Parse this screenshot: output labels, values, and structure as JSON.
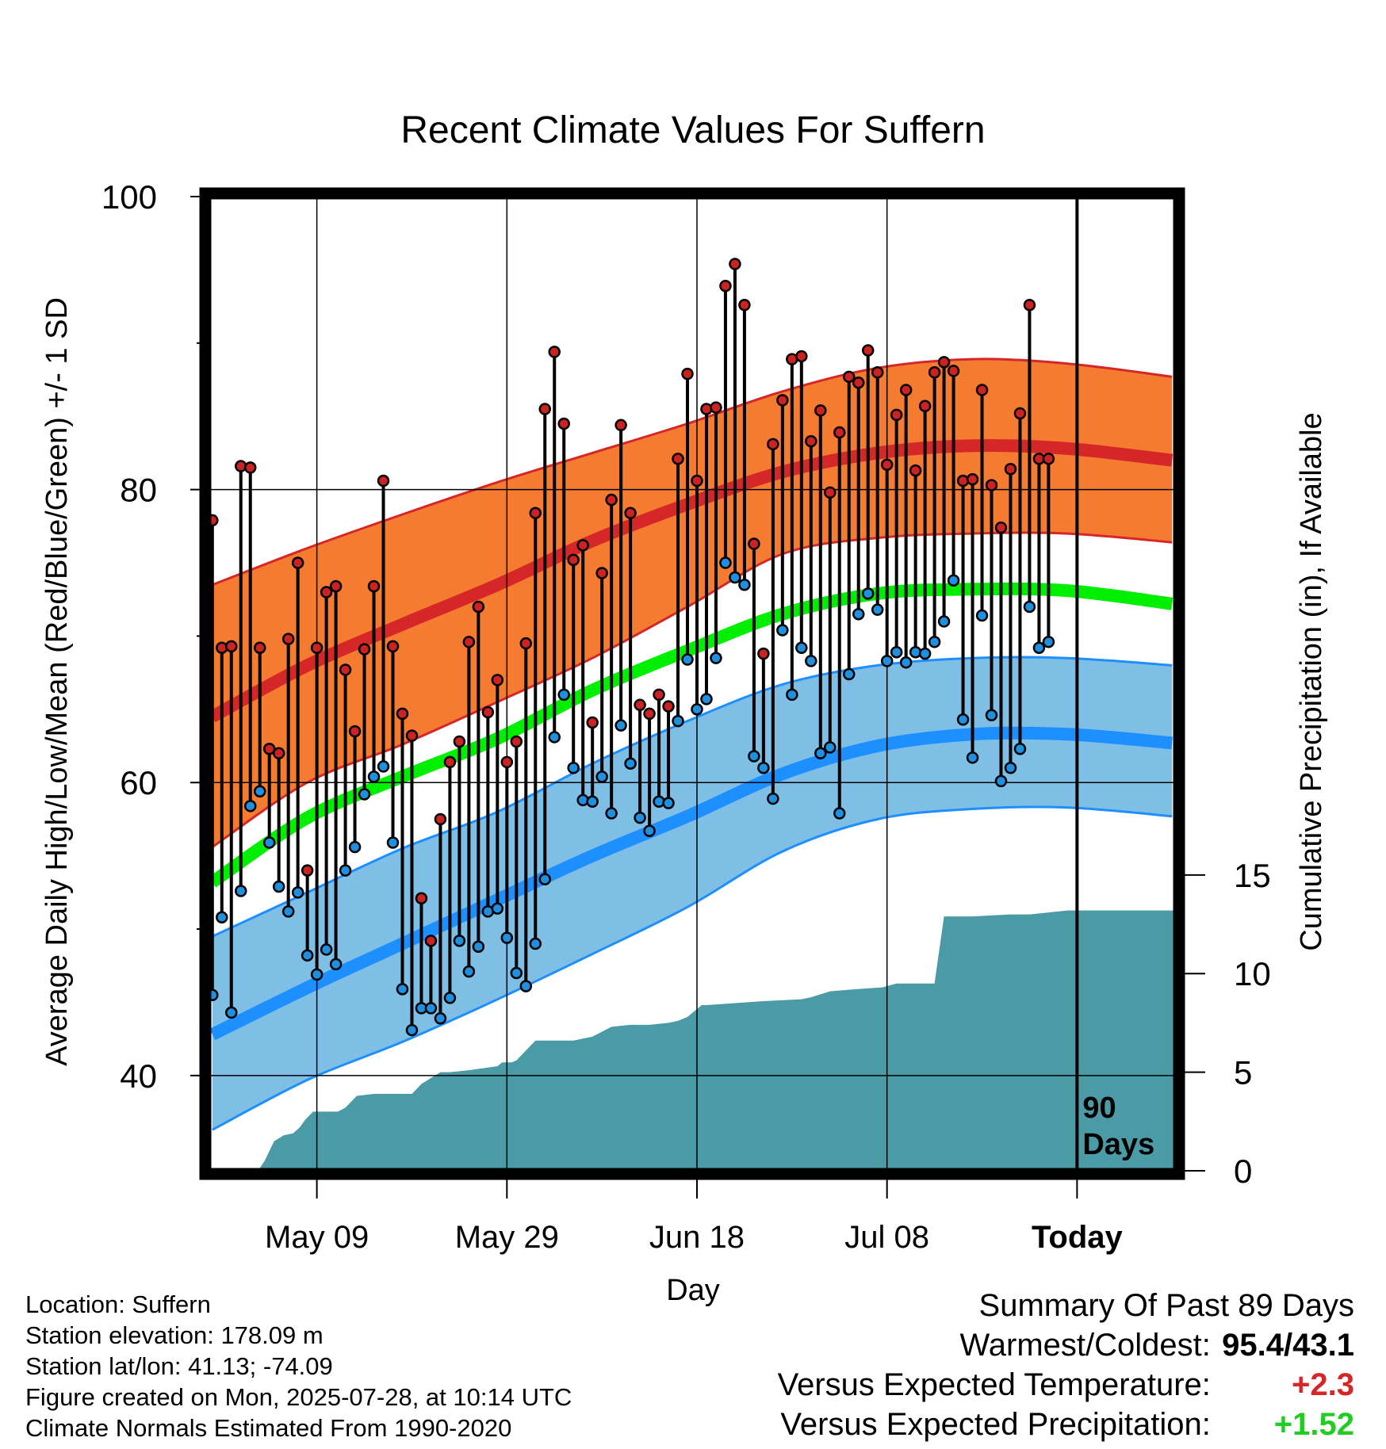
{
  "chart_data": {
    "type": "line",
    "title": "Recent Climate Values For Suffern",
    "xlabel": "Day",
    "ylabel": "Average Daily High/Low/Mean (Red/Blue/Green) +/- 1 SD",
    "y2label": "Cumulative Precipitation (in), If Available",
    "ylim": [
      33.5,
      100
    ],
    "y_ticks": [
      "100",
      "80",
      "60",
      "40"
    ],
    "y2lim": [
      0,
      49.4
    ],
    "y2_ticks": [
      "15",
      "10",
      "5",
      "0"
    ],
    "xlim": [
      -0.4,
      101.4
    ],
    "x_ticks": [
      {
        "day": 11,
        "label": "May 09"
      },
      {
        "day": 31,
        "label": "May 29"
      },
      {
        "day": 51,
        "label": "Jun 18"
      },
      {
        "day": 71,
        "label": "Jul 08"
      },
      {
        "day": 91,
        "label": "Today"
      }
    ],
    "today_marker": {
      "day": 91,
      "label": [
        "90",
        "Days"
      ]
    },
    "grid": true,
    "normals": {
      "days": [
        0,
        10,
        20,
        30,
        40,
        50,
        60,
        70,
        80,
        90,
        101
      ],
      "high_mean": [
        64.5,
        68.0,
        70.8,
        73.5,
        76.5,
        79.0,
        81.2,
        82.5,
        83.0,
        82.8,
        82.0
      ],
      "high_upper": [
        73.5,
        76.0,
        78.3,
        80.5,
        82.5,
        84.5,
        86.7,
        88.3,
        88.9,
        88.6,
        87.7
      ],
      "high_lower": [
        55.6,
        60.0,
        62.6,
        65.5,
        68.5,
        72.0,
        75.6,
        76.7,
        77.0,
        77.0,
        76.4
      ],
      "mean_mean": [
        53.2,
        57.6,
        60.4,
        63.0,
        66.3,
        69.0,
        71.5,
        72.9,
        73.2,
        73.1,
        72.2
      ],
      "low_mean": [
        42.8,
        46.0,
        49.0,
        52.0,
        55.0,
        57.7,
        60.6,
        62.5,
        63.3,
        63.3,
        62.7
      ],
      "low_upper": [
        49.5,
        52.5,
        55.5,
        58.0,
        61.3,
        64.2,
        66.7,
        68.0,
        68.5,
        68.5,
        68.0
      ],
      "low_lower": [
        36.3,
        39.7,
        42.3,
        45.2,
        48.3,
        51.5,
        55.3,
        57.5,
        58.2,
        58.3,
        57.7
      ]
    },
    "series": [
      {
        "name": "High",
        "values": [
          77.9,
          69.2,
          69.3,
          81.6,
          81.5,
          69.2,
          62.3,
          62.0,
          69.8,
          75.0,
          54.0,
          69.2,
          73.0,
          73.4,
          67.7,
          63.5,
          69.1,
          73.4,
          80.6,
          69.3,
          64.7,
          63.2,
          52.1,
          49.2,
          57.5,
          61.4,
          62.8,
          69.6,
          72.0,
          64.8,
          67.0,
          61.4,
          62.8,
          69.5,
          78.4,
          85.5,
          89.4,
          84.5,
          75.2,
          76.2,
          64.1,
          74.3,
          79.3,
          84.4,
          78.4,
          65.3,
          64.7,
          66.0,
          65.2,
          82.1,
          87.9,
          80.6,
          85.5,
          85.6,
          93.9,
          95.4,
          92.6,
          76.3,
          68.8,
          83.1,
          86.1,
          88.9,
          89.1,
          83.3,
          85.4,
          79.8,
          83.9,
          87.7,
          87.3,
          89.5,
          88.0,
          81.7,
          85.1,
          86.8,
          81.3,
          85.7,
          88.0,
          88.7,
          88.1,
          80.6,
          80.7,
          86.8,
          80.3,
          77.4,
          81.4,
          85.2,
          92.6,
          82.1,
          82.1
        ]
      },
      {
        "name": "Low",
        "values": [
          45.5,
          50.8,
          44.3,
          52.6,
          58.4,
          59.4,
          55.9,
          52.9,
          51.2,
          52.5,
          48.2,
          46.9,
          48.6,
          47.6,
          54.0,
          55.6,
          59.2,
          60.4,
          61.1,
          55.9,
          45.9,
          43.1,
          44.6,
          44.6,
          43.9,
          45.3,
          49.2,
          47.1,
          48.8,
          51.2,
          51.4,
          49.4,
          47.0,
          46.1,
          49.0,
          53.4,
          63.1,
          66.0,
          61.0,
          58.8,
          58.7,
          60.4,
          57.9,
          63.9,
          61.3,
          57.6,
          56.7,
          58.7,
          58.6,
          64.2,
          68.4,
          65.0,
          65.7,
          68.5,
          75.0,
          74.0,
          73.5,
          61.8,
          61.0,
          58.9,
          70.4,
          66.0,
          69.2,
          68.3,
          62.0,
          62.4,
          57.9,
          67.4,
          71.5,
          72.9,
          71.8,
          68.3,
          68.9,
          68.2,
          68.9,
          68.8,
          69.6,
          71.0,
          73.8,
          64.3,
          61.7,
          71.4,
          64.6,
          60.1,
          61.0,
          62.3,
          72.0,
          69.2,
          69.6
        ]
      }
    ],
    "precip_cumulative": {
      "days": [
        4.8,
        5.5,
        6.5,
        7.5,
        8.5,
        9.2,
        9.8,
        10.6,
        12.5,
        13.2,
        14.0,
        15.2,
        17.0,
        18.0,
        21.0,
        22.0,
        24.0,
        25.0,
        27.0,
        30.0,
        30.5,
        31.5,
        32.0,
        34.0,
        36.0,
        38.0,
        40.0,
        42.0,
        44.0,
        46.0,
        48.0,
        49.0,
        50.0,
        51.5,
        52.0,
        55.0,
        58.0,
        62.0,
        63.0,
        65.0,
        67.5,
        70.5,
        72.0,
        75.0,
        76.0,
        77.0,
        80.0,
        84.0,
        86.0,
        88.0,
        90.0,
        101.4
      ],
      "values": [
        0.0,
        0.5,
        1.5,
        1.8,
        1.9,
        2.2,
        2.6,
        3.0,
        3.0,
        3.0,
        3.2,
        3.8,
        3.9,
        3.9,
        3.9,
        4.4,
        5.0,
        5.0,
        5.1,
        5.3,
        5.5,
        5.5,
        5.6,
        6.6,
        6.6,
        6.6,
        6.8,
        7.3,
        7.4,
        7.4,
        7.5,
        7.6,
        7.8,
        8.4,
        8.4,
        8.5,
        8.6,
        8.7,
        8.8,
        9.1,
        9.2,
        9.3,
        9.5,
        9.5,
        9.5,
        12.9,
        12.9,
        13.0,
        13.0,
        13.1,
        13.2,
        13.2
      ]
    }
  },
  "info": {
    "location": "Location: Suffern",
    "elevation": "Station elevation: 178.09 m",
    "latlon": "Station lat/lon: 41.13; -74.09",
    "created": "Figure created on Mon, 2025-07-28, at 10:14 UTC",
    "normals": "Climate Normals Estimated From 1990-2020"
  },
  "summary": {
    "heading": "Summary Of Past 89 Days",
    "warm_cold_label": "Warmest/Coldest:",
    "warm_cold_value": "95.4/43.1",
    "temp_label": "Versus Expected Temperature:",
    "temp_value": "+2.3",
    "precip_label": "Versus Expected Precipitation:",
    "precip_value": "+1.52"
  },
  "colors": {
    "high_band": "#f47b30",
    "high_line": "#d62728",
    "high_edge": "#d62728",
    "mean_line": "#00ee00",
    "low_band": "#7fbfe5",
    "low_line": "#1e8fff",
    "low_edge": "#1e8fff",
    "precip_fill": "#4a9ba6",
    "high_dot": "#cc2222",
    "low_dot": "#1f8fe0",
    "temp_delta": "#d62728",
    "precip_delta": "#22cc22"
  }
}
